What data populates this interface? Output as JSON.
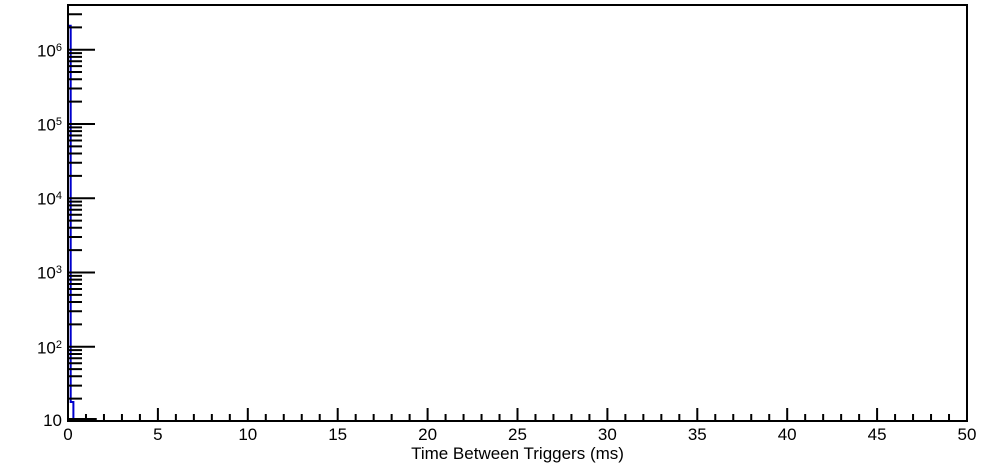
{
  "chart_data": {
    "type": "bar",
    "subtype": "histogram-step-outline",
    "xlabel": "Time Between Triggers (ms)",
    "ylabel": "",
    "xlim": [
      0,
      50
    ],
    "ylim": [
      10,
      4000000
    ],
    "y_scale": "log",
    "x_scale": "linear",
    "grid": false,
    "legend": false,
    "background_color": "#ffffff",
    "frame_color": "#000000",
    "x_ticks_major": [
      0,
      5,
      10,
      15,
      20,
      25,
      30,
      35,
      40,
      45,
      50
    ],
    "x_tick_labels": [
      "0",
      "5",
      "10",
      "15",
      "20",
      "25",
      "30",
      "35",
      "40",
      "45",
      "50"
    ],
    "x_minor_tick_step": 1,
    "y_decade_labels": [
      {
        "base": "10",
        "exp": "",
        "value": 10
      },
      {
        "base": "10",
        "exp": "2",
        "value": 100
      },
      {
        "base": "10",
        "exp": "3",
        "value": 1000
      },
      {
        "base": "10",
        "exp": "4",
        "value": 10000
      },
      {
        "base": "10",
        "exp": "5",
        "value": 100000
      },
      {
        "base": "10",
        "exp": "6",
        "value": 1000000
      }
    ],
    "series": [
      {
        "name": "time-between-triggers",
        "color": "#0000cc",
        "line_width": 2,
        "bins": [
          {
            "x_low": 0.0,
            "x_high": 0.15,
            "count": 2100000
          },
          {
            "x_low": 0.15,
            "x_high": 0.3,
            "count": 18
          }
        ]
      }
    ],
    "baseline_segment": {
      "comment_visible_feature": "thick black line along axis minimum",
      "x_low": 0.0,
      "x_high": 1.6,
      "color": "#000000",
      "line_width": 3
    }
  }
}
